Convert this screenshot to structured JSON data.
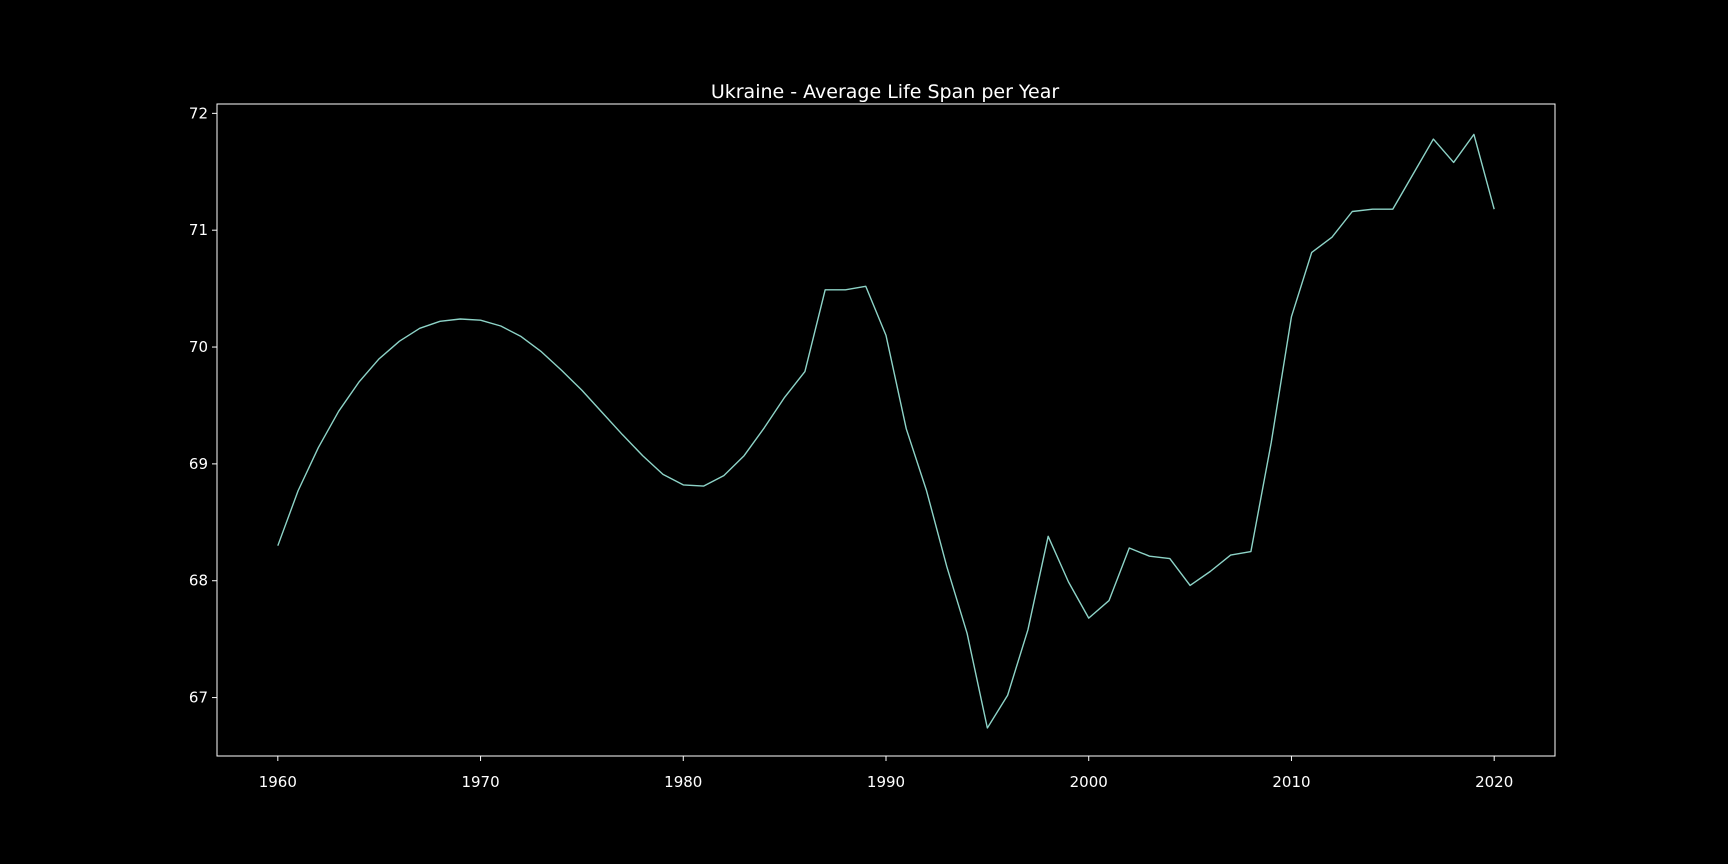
{
  "chart_data": {
    "type": "line",
    "title": "Ukraine - Average Life Span per Year",
    "xlabel": "",
    "ylabel": "",
    "xlim": [
      1957,
      2023
    ],
    "ylim": [
      66.5,
      72.08
    ],
    "x_ticks": [
      1960,
      1970,
      1980,
      1990,
      2000,
      2010,
      2020
    ],
    "y_ticks": [
      67,
      68,
      69,
      70,
      71,
      72
    ],
    "grid": false,
    "legend": "none",
    "line_color": "#8dd3c7",
    "axis_color": "#ffffff",
    "background_color": "#000000",
    "series": [
      {
        "x": [
          1960,
          1961,
          1962,
          1963,
          1964,
          1965,
          1966,
          1967,
          1968,
          1969,
          1970,
          1971,
          1972,
          1973,
          1974,
          1975,
          1976,
          1977,
          1978,
          1979,
          1980,
          1981,
          1982,
          1983,
          1984,
          1985,
          1986,
          1987,
          1988,
          1989,
          1990,
          1991,
          1992,
          1993,
          1994,
          1995,
          1996,
          1997,
          1998,
          1999,
          2000,
          2001,
          2002,
          2003,
          2004,
          2005,
          2006,
          2007,
          2008,
          2009,
          2010,
          2011,
          2012,
          2013,
          2014,
          2015,
          2016,
          2017,
          2018,
          2019,
          2020
        ],
        "values": [
          68.3,
          68.77,
          69.14,
          69.45,
          69.7,
          69.9,
          70.05,
          70.16,
          70.22,
          70.24,
          70.23,
          70.18,
          70.09,
          69.96,
          69.8,
          69.63,
          69.44,
          69.25,
          69.07,
          68.91,
          68.82,
          68.81,
          68.9,
          69.07,
          69.31,
          69.57,
          69.79,
          70.49,
          70.49,
          70.52,
          70.1,
          69.3,
          68.77,
          68.12,
          67.55,
          66.74,
          67.02,
          67.58,
          68.38,
          67.99,
          67.68,
          67.83,
          68.28,
          68.21,
          68.19,
          67.96,
          68.08,
          68.22,
          68.25,
          69.18,
          70.26,
          70.81,
          70.94,
          71.16,
          71.18,
          71.18,
          71.48,
          71.78,
          71.58,
          71.82,
          71.18
        ]
      }
    ]
  }
}
